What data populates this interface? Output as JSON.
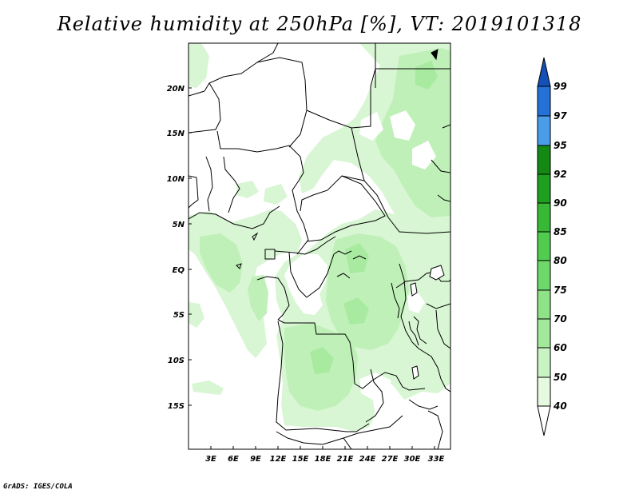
{
  "title": "Relative humidity at 250hPa [%], VT: 2019101318",
  "credit": "GrADS: IGES/COLA",
  "lat_ticks": [
    "20N",
    "15N",
    "10N",
    "5N",
    "EQ",
    "5S",
    "10S",
    "15S"
  ],
  "lon_ticks": [
    "3E",
    "6E",
    "9E",
    "12E",
    "15E",
    "18E",
    "21E",
    "24E",
    "27E",
    "30E",
    "33E"
  ],
  "colorbar": {
    "levels": [
      "40",
      "50",
      "60",
      "70",
      "75",
      "80",
      "85",
      "90",
      "92",
      "95",
      "97",
      "99"
    ],
    "colors": [
      "#ffffff",
      "#e6fae2",
      "#c8f3c3",
      "#a3e99b",
      "#8ee287",
      "#6fd86a",
      "#52cc4e",
      "#38b935",
      "#1f9f1e",
      "#138813",
      "#4a9ee8",
      "#2472d8",
      "#1450b8"
    ]
  },
  "map": {
    "lon_range": [
      0,
      35
    ],
    "lat_range": [
      -20,
      25
    ],
    "variable": "Relative humidity",
    "level": "250hPa",
    "units": "%",
    "valid_time": "2019101318"
  }
}
